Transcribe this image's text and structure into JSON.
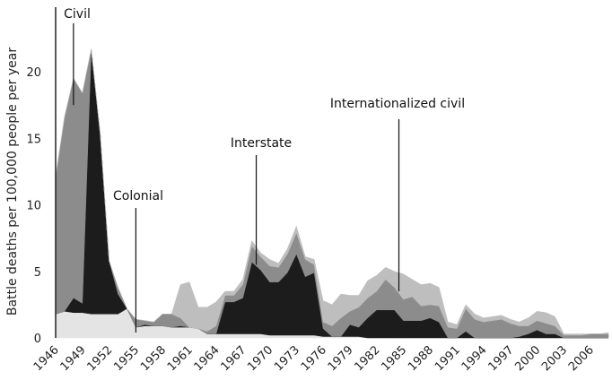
{
  "chart_data": {
    "type": "area",
    "stacked": true,
    "ylabel": "Battle deaths per 100,000 people per year",
    "xlabel": "",
    "ylim": [
      0,
      25
    ],
    "xlim": [
      1946,
      2008
    ],
    "yticks": [
      0,
      5,
      10,
      15,
      20
    ],
    "xticks": [
      1946,
      1949,
      1952,
      1955,
      1958,
      1961,
      1964,
      1967,
      1970,
      1973,
      1976,
      1979,
      1982,
      1985,
      1988,
      1991,
      1994,
      1997,
      2000,
      2003,
      2006
    ],
    "x": [
      1946,
      1947,
      1948,
      1949,
      1950,
      1951,
      1952,
      1953,
      1954,
      1955,
      1956,
      1957,
      1958,
      1959,
      1960,
      1961,
      1962,
      1963,
      1964,
      1965,
      1966,
      1967,
      1968,
      1969,
      1970,
      1971,
      1972,
      1973,
      1974,
      1975,
      1976,
      1977,
      1978,
      1979,
      1980,
      1981,
      1982,
      1983,
      1984,
      1985,
      1986,
      1987,
      1988,
      1989,
      1990,
      1991,
      1992,
      1993,
      1994,
      1995,
      1996,
      1997,
      1998,
      1999,
      2000,
      2001,
      2002,
      2003,
      2004,
      2005,
      2006,
      2007,
      2008
    ],
    "series": [
      {
        "name": "Colonial",
        "color": "#e4e4e4",
        "values": [
          1.8,
          2.0,
          1.9,
          1.9,
          1.8,
          1.8,
          1.8,
          1.8,
          2.2,
          0.8,
          0.9,
          0.9,
          0.9,
          0.8,
          0.8,
          0.8,
          0.7,
          0.3,
          0.3,
          0.3,
          0.3,
          0.3,
          0.3,
          0.3,
          0.2,
          0.2,
          0.2,
          0.2,
          0.2,
          0.2,
          0.1,
          0.1,
          0.1,
          0.1,
          0.1,
          0,
          0,
          0,
          0,
          0,
          0,
          0,
          0,
          0,
          0,
          0,
          0,
          0,
          0,
          0,
          0,
          0,
          0,
          0,
          0,
          0,
          0,
          0,
          0,
          0,
          0,
          0,
          0
        ]
      },
      {
        "name": "Interstate",
        "color": "#1c1c1c",
        "values": [
          0,
          0,
          1.1,
          0.7,
          19.9,
          13.5,
          4.0,
          1.5,
          0,
          0,
          0.1,
          0,
          0,
          0,
          0.1,
          0,
          0,
          0,
          0,
          2.4,
          2.4,
          2.7,
          5.4,
          4.8,
          4.0,
          4.0,
          4.7,
          6.1,
          4.4,
          4.7,
          0.6,
          0,
          0,
          0.9,
          0.7,
          1.5,
          2.1,
          2.1,
          2.1,
          1.3,
          1.3,
          1.3,
          1.5,
          1.2,
          0,
          0,
          0.5,
          0,
          0,
          0,
          0,
          0,
          0.1,
          0.3,
          0.6,
          0.3,
          0.3,
          0,
          0,
          0,
          0,
          0,
          0
        ]
      },
      {
        "name": "Civil",
        "color": "#8c8c8c",
        "values": [
          10.3,
          14.6,
          16.5,
          15.8,
          0,
          0,
          0,
          0.5,
          0,
          0.6,
          0.3,
          0.3,
          0.9,
          1.0,
          0.6,
          0,
          0,
          0.2,
          0.6,
          0.5,
          0.5,
          1.0,
          1.2,
          1.0,
          1.2,
          1.1,
          1.4,
          1.6,
          1.3,
          0.6,
          0.5,
          0.8,
          1.4,
          1.0,
          1.5,
          1.5,
          1.4,
          2.3,
          1.7,
          1.6,
          1.8,
          1.1,
          1.0,
          1.2,
          0.8,
          0.7,
          1.7,
          1.4,
          1.2,
          1.3,
          1.4,
          1.1,
          0.8,
          0.6,
          0.7,
          0.8,
          0.6,
          0.2,
          0.2,
          0.2,
          0.3,
          0.3,
          0.3
        ]
      },
      {
        "name": "Internationalized civil",
        "color": "#bebebe",
        "values": [
          0,
          0,
          0,
          0,
          0,
          0,
          0,
          0,
          0,
          0,
          0,
          0,
          0,
          0,
          2.5,
          3.4,
          1.6,
          1.8,
          1.8,
          0.3,
          0.3,
          0.4,
          0.4,
          0.3,
          0.5,
          0.3,
          0.4,
          0.5,
          0.2,
          0.4,
          1.6,
          1.6,
          1.8,
          1.2,
          0.9,
          1.3,
          1.2,
          0.9,
          1.2,
          1.9,
          1.3,
          1.6,
          1.6,
          1.4,
          0.4,
          0.3,
          0.3,
          0.4,
          0.3,
          0.3,
          0.3,
          0.3,
          0.3,
          0.6,
          0.7,
          0.8,
          0.7,
          0.1,
          0.1,
          0.1,
          0,
          0,
          0.1
        ]
      }
    ],
    "annotations": [
      {
        "text": "Civil",
        "x": 1948,
        "y": 17.5
      },
      {
        "text": "Colonial",
        "x": 1955,
        "y": 0.4
      },
      {
        "text": "Interstate",
        "x": 1968.5,
        "y": 5.5
      },
      {
        "text": "Internationalized civil",
        "x": 1984.5,
        "y": 3.5
      }
    ],
    "grid": false,
    "legend": "none"
  }
}
